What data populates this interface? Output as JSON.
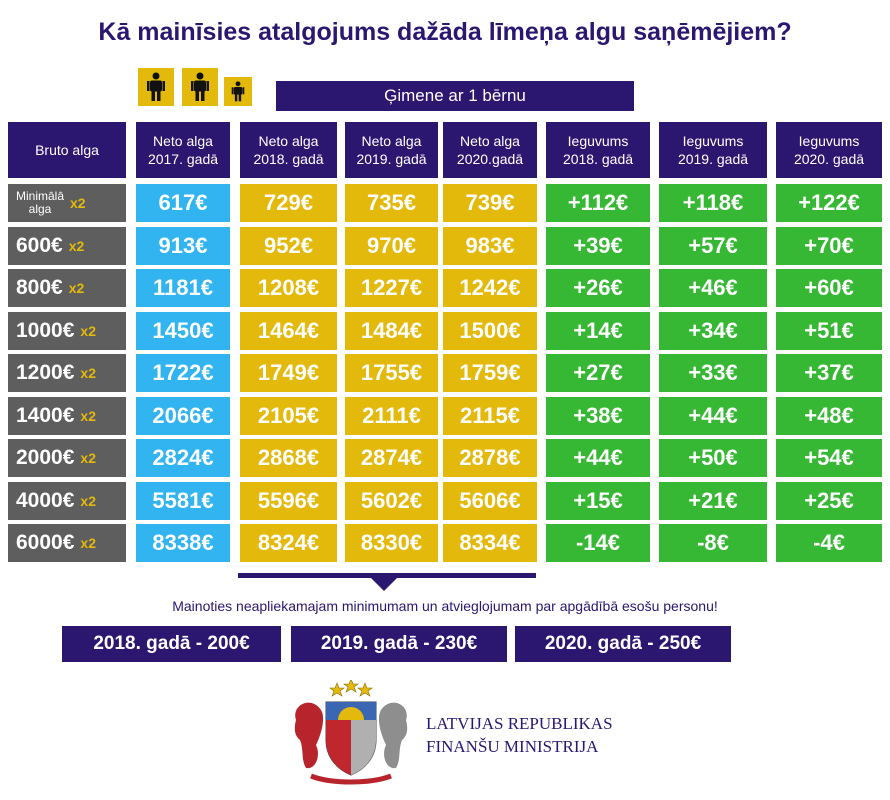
{
  "title": "Kā mainīsies atalgojums dažāda līmeņa algu saņēmējiem?",
  "family_label": "Ģimene ar 1 bērnu",
  "icons": [
    "person-adult-icon",
    "person-adult-icon",
    "person-child-icon"
  ],
  "headers": {
    "gross": "Bruto alga",
    "net": [
      "Neto alga\n2017. gadā",
      "Neto alga\n2018. gadā",
      "Neto alga\n2019. gadā",
      "Neto alga\n2020.gadā"
    ],
    "gain": [
      "Ieguvums\n2018. gadā",
      "Ieguvums\n2019. gadā",
      "Ieguvums\n2020. gadā"
    ]
  },
  "multiplier": "x2",
  "rows": [
    {
      "gross": "Minimālā\nalga",
      "net": [
        "617€",
        "729€",
        "735€",
        "739€"
      ],
      "gain": [
        "+112€",
        "+118€",
        "+122€"
      ]
    },
    {
      "gross": "600€",
      "net": [
        "913€",
        "952€",
        "970€",
        "983€"
      ],
      "gain": [
        "+39€",
        "+57€",
        "+70€"
      ]
    },
    {
      "gross": "800€",
      "net": [
        "1181€",
        "1208€",
        "1227€",
        "1242€"
      ],
      "gain": [
        "+26€",
        "+46€",
        "+60€"
      ]
    },
    {
      "gross": "1000€",
      "net": [
        "1450€",
        "1464€",
        "1484€",
        "1500€"
      ],
      "gain": [
        "+14€",
        "+34€",
        "+51€"
      ]
    },
    {
      "gross": "1200€",
      "net": [
        "1722€",
        "1749€",
        "1755€",
        "1759€"
      ],
      "gain": [
        "+27€",
        "+33€",
        "+37€"
      ]
    },
    {
      "gross": "1400€",
      "net": [
        "2066€",
        "2105€",
        "2111€",
        "2115€"
      ],
      "gain": [
        "+38€",
        "+44€",
        "+48€"
      ]
    },
    {
      "gross": "2000€",
      "net": [
        "2824€",
        "2868€",
        "2874€",
        "2878€"
      ],
      "gain": [
        "+44€",
        "+50€",
        "+54€"
      ]
    },
    {
      "gross": "4000€",
      "net": [
        "5581€",
        "5596€",
        "5602€",
        "5606€"
      ],
      "gain": [
        "+15€",
        "+21€",
        "+25€"
      ]
    },
    {
      "gross": "6000€",
      "net": [
        "8338€",
        "8324€",
        "8330€",
        "8334€"
      ],
      "gain": [
        "-14€",
        "-8€",
        "-4€"
      ]
    }
  ],
  "note": "Mainoties neapliekamajam minimumam un atvieglojumam par apgādībā esošu personu!",
  "badges": [
    "2018. gadā - 200€",
    "2019. gadā - 230€",
    "2020. gadā - 250€"
  ],
  "ministry": {
    "line1": "LATVIJAS REPUBLIKAS",
    "line2": "FINANŠU MINISTRIJA"
  },
  "colors": {
    "navy": "#2b1670",
    "blue": "#31b4ef",
    "gold": "#e3b90b",
    "green": "#36b834",
    "grey": "#5e5e5e"
  }
}
